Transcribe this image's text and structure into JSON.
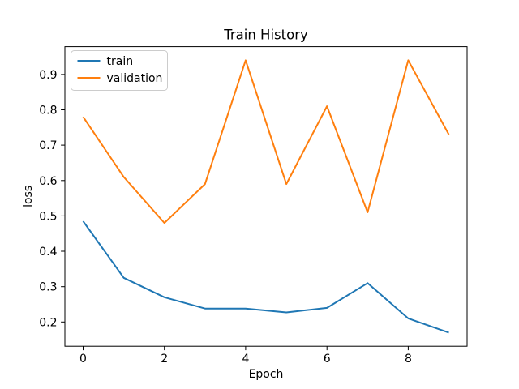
{
  "chart_data": {
    "type": "line",
    "title": "Train History",
    "xlabel": "Epoch",
    "ylabel": "loss",
    "x": [
      0,
      1,
      2,
      3,
      4,
      5,
      6,
      7,
      8,
      9
    ],
    "series": [
      {
        "name": "train",
        "color": "#1f77b4",
        "values": [
          0.485,
          0.325,
          0.27,
          0.238,
          0.238,
          0.227,
          0.24,
          0.31,
          0.21,
          0.17
        ]
      },
      {
        "name": "validation",
        "color": "#ff7f0e",
        "values": [
          0.78,
          0.61,
          0.48,
          0.59,
          0.94,
          0.59,
          0.81,
          0.51,
          0.94,
          0.73
        ]
      }
    ],
    "xlim": [
      -0.45,
      9.45
    ],
    "ylim": [
      0.1315,
      0.9785
    ],
    "xticks": [
      0,
      2,
      4,
      6,
      8
    ],
    "yticks": [
      0.2,
      0.3,
      0.4,
      0.5,
      0.6,
      0.7,
      0.8,
      0.9
    ],
    "grid": false,
    "legend": {
      "position": "upper-left",
      "entries": [
        "train",
        "validation"
      ]
    },
    "background": "#ffffff",
    "axis_color": "#000000"
  }
}
